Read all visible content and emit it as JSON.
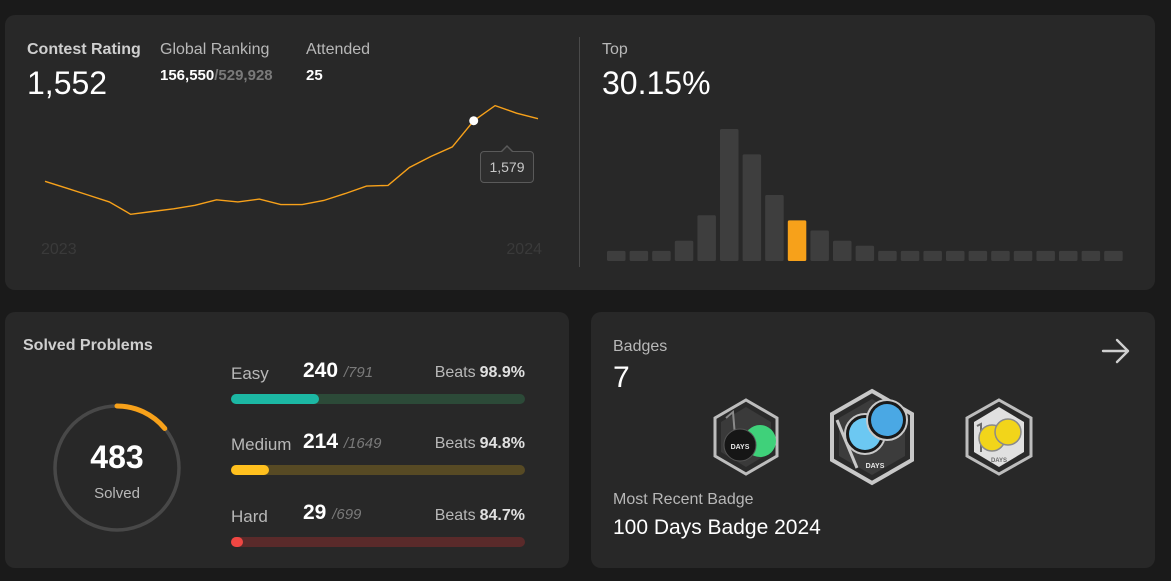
{
  "contest": {
    "rating_label": "Contest Rating",
    "rating": "1,552",
    "ranking_label": "Global Ranking",
    "ranking": "156,550",
    "ranking_total": "/529,928",
    "attended_label": "Attended",
    "attended": "25",
    "top_label": "Top",
    "top_value": "30.15%",
    "tooltip": "1,579",
    "colors": {
      "line": "#f7a11a",
      "bar": "#3e3e3e",
      "highlight": "#f7a11a"
    }
  },
  "chart_data": [
    {
      "type": "line",
      "x_tick_labels": [
        "2023",
        "2024"
      ],
      "values": [
        1480,
        1470,
        1460,
        1450,
        1432,
        1436,
        1440,
        1445,
        1453,
        1450,
        1454,
        1446,
        1446,
        1452,
        1462,
        1473,
        1474,
        1500,
        1516,
        1530,
        1568,
        1590,
        1579,
        1571
      ],
      "highlight_index": 20,
      "ylim": [
        1380,
        1620
      ]
    },
    {
      "type": "bar",
      "values": [
        2,
        2,
        2,
        4,
        9,
        26,
        21,
        13,
        8,
        6,
        4,
        3,
        2,
        2,
        2,
        2,
        2,
        2,
        2,
        2,
        2,
        2,
        2
      ],
      "highlight_index": 8
    }
  ],
  "solved": {
    "title": "Solved Problems",
    "count": "483",
    "count_label": "Solved",
    "ring_fraction": 0.14,
    "colors": {
      "ring_track": "#484848",
      "ring_fill": "#f7a11a"
    },
    "rows": [
      {
        "label": "Easy",
        "count": "240",
        "total": "/791",
        "beats_label": "Beats",
        "beats": "98.9%",
        "fraction": 0.3,
        "track": "#2c4a38",
        "fill": "#1cb8a4"
      },
      {
        "label": "Medium",
        "count": "214",
        "total": "/1649",
        "beats_label": "Beats",
        "beats": "94.8%",
        "fraction": 0.13,
        "track": "#574a24",
        "fill": "#ffc01e"
      },
      {
        "label": "Hard",
        "count": "29",
        "total": "/699",
        "beats_label": "Beats",
        "beats": "84.7%",
        "fraction": 0.04,
        "track": "#5a2a2a",
        "fill": "#ef4743"
      }
    ]
  },
  "badges": {
    "title": "Badges",
    "count": "7",
    "arrow_icon": "arrow-right-icon",
    "recent_label": "Most Recent Badge",
    "recent_name": "100 Days Badge 2024",
    "items": [
      {
        "name": "50-days-badge-icon",
        "text": "DAYS",
        "colors": [
          "#1a1a1a",
          "#3fd17a"
        ]
      },
      {
        "name": "100-days-badge-icon",
        "text": "DAYS",
        "colors": [
          "#1a1a1a",
          "#5ab8ee"
        ]
      },
      {
        "name": "100-days-yellow-badge-icon",
        "text": "DAYS",
        "colors": [
          "#d8d8d8",
          "#f2d51a"
        ]
      }
    ]
  }
}
